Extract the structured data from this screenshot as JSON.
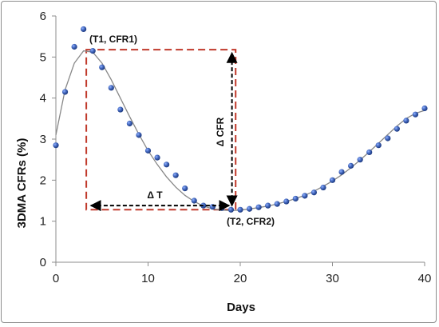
{
  "chart_data": {
    "type": "scatter",
    "xlabel": "Days",
    "ylabel": "3DMA CFRs  (%)",
    "xlim": [
      0,
      40
    ],
    "ylim": [
      0,
      6
    ],
    "x_ticks": [
      "0",
      "10",
      "20",
      "30",
      "40"
    ],
    "y_ticks": [
      "0",
      "1",
      "2",
      "3",
      "4",
      "5",
      "6"
    ],
    "grid": false,
    "legend": "none",
    "series": [
      {
        "marker_color": "#3f63b8",
        "points": [
          [
            0,
            2.85
          ],
          [
            1,
            4.15
          ],
          [
            2,
            5.25
          ],
          [
            3,
            5.68
          ],
          [
            4,
            5.15
          ],
          [
            5,
            4.75
          ],
          [
            6,
            4.25
          ],
          [
            7,
            3.72
          ],
          [
            8,
            3.38
          ],
          [
            9,
            3.1
          ],
          [
            10,
            2.72
          ],
          [
            11,
            2.55
          ],
          [
            12,
            2.38
          ],
          [
            13,
            2.12
          ],
          [
            14,
            1.8
          ],
          [
            15,
            1.5
          ],
          [
            16,
            1.38
          ],
          [
            17,
            1.35
          ],
          [
            18,
            1.32
          ],
          [
            19,
            1.28
          ],
          [
            20,
            1.28
          ],
          [
            21,
            1.3
          ],
          [
            22,
            1.34
          ],
          [
            23,
            1.38
          ],
          [
            24,
            1.42
          ],
          [
            25,
            1.48
          ],
          [
            26,
            1.55
          ],
          [
            27,
            1.62
          ],
          [
            28,
            1.7
          ],
          [
            29,
            1.82
          ],
          [
            30,
            2.0
          ],
          [
            31,
            2.2
          ],
          [
            32,
            2.35
          ],
          [
            33,
            2.5
          ],
          [
            34,
            2.68
          ],
          [
            35,
            2.85
          ],
          [
            36,
            3.02
          ],
          [
            37,
            3.25
          ],
          [
            38,
            3.45
          ],
          [
            39,
            3.6
          ],
          [
            40,
            3.75
          ]
        ]
      }
    ],
    "fit_curve": {
      "color": "#888888",
      "points": [
        [
          0,
          3.1
        ],
        [
          1,
          4.2
        ],
        [
          2,
          4.85
        ],
        [
          3,
          5.15
        ],
        [
          4,
          5.12
        ],
        [
          5,
          4.85
        ],
        [
          6,
          4.45
        ],
        [
          7,
          4.0
        ],
        [
          8,
          3.55
        ],
        [
          9,
          3.12
        ],
        [
          10,
          2.72
        ],
        [
          11,
          2.38
        ],
        [
          12,
          2.08
        ],
        [
          13,
          1.83
        ],
        [
          14,
          1.63
        ],
        [
          15,
          1.48
        ],
        [
          16,
          1.37
        ],
        [
          17,
          1.3
        ],
        [
          18,
          1.27
        ],
        [
          19,
          1.26
        ],
        [
          20,
          1.27
        ],
        [
          21,
          1.3
        ],
        [
          22,
          1.33
        ],
        [
          23,
          1.37
        ],
        [
          24,
          1.42
        ],
        [
          25,
          1.48
        ],
        [
          26,
          1.55
        ],
        [
          27,
          1.63
        ],
        [
          28,
          1.73
        ],
        [
          29,
          1.85
        ],
        [
          30,
          1.98
        ],
        [
          31,
          2.13
        ],
        [
          32,
          2.3
        ],
        [
          33,
          2.49
        ],
        [
          34,
          2.69
        ],
        [
          35,
          2.9
        ],
        [
          36,
          3.11
        ],
        [
          37,
          3.32
        ],
        [
          38,
          3.5
        ],
        [
          39,
          3.63
        ],
        [
          40,
          3.7
        ]
      ]
    },
    "box": {
      "x0": 3.3,
      "x1": 19.5,
      "y0": 1.28,
      "y1": 5.18,
      "color": "#c0392b"
    },
    "annotations": {
      "p1_label": "(T1, CFR1)",
      "p2_label": "(T2, CFR2)",
      "delta_t_label": "Δ T",
      "delta_cfr_label": "Δ CFR"
    },
    "delta_t": {
      "x0": 3.8,
      "x1": 18.8,
      "y": 1.38
    },
    "delta_cfr": {
      "x": 19.1,
      "y0": 1.38,
      "y1": 5.1
    },
    "p1": {
      "x": 4,
      "y": 5.15
    },
    "p2": {
      "x": 19,
      "y": 1.28
    }
  }
}
